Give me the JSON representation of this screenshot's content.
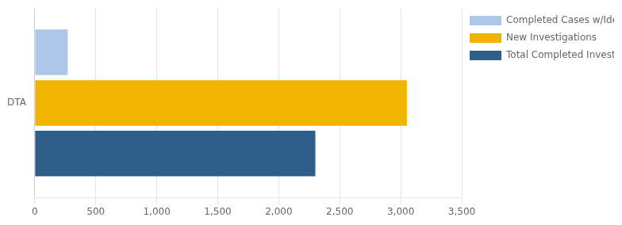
{
  "chart_data": {
    "type": "bar",
    "orientation": "horizontal",
    "categories": [
      "DTA"
    ],
    "series": [
      {
        "name": "Completed Cases w/Identified Fraud",
        "color": "#aec6e8",
        "values": [
          270
        ]
      },
      {
        "name": "New Investigations",
        "color": "#f0b400",
        "values": [
          3050
        ]
      },
      {
        "name": "Total Completed Investigations",
        "color": "#2e5f8a",
        "values": [
          2300
        ]
      }
    ],
    "xlim": [
      0,
      3500
    ],
    "xticks": [
      0,
      500,
      {
        "value": 1000,
        "label": "1,000"
      },
      {
        "value": 1500,
        "label": "1,500"
      },
      {
        "value": 2000,
        "label": "2,000"
      },
      {
        "value": 2500,
        "label": "2,500"
      },
      {
        "value": 3000,
        "label": "3,000"
      },
      {
        "value": 3500,
        "label": "3,500"
      }
    ],
    "grid": true,
    "legend": "right"
  }
}
